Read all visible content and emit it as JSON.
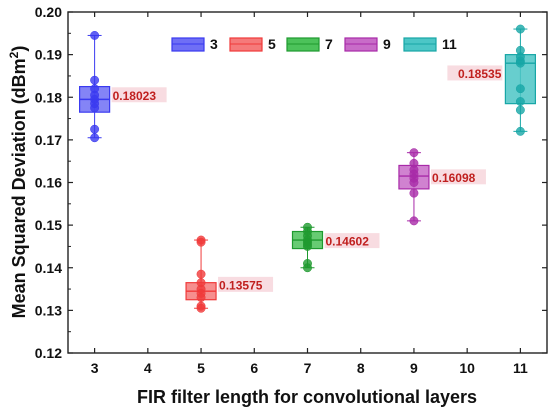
{
  "chart_data": {
    "type": "box",
    "title": "",
    "xlabel": "FIR filter length for convolutional layers",
    "ylabel": "Mean Squared Deviation (dBm",
    "ylabel_sup": "2",
    "ylabel_close": ")",
    "xlim": [
      2.5,
      11.5
    ],
    "ylim": [
      0.12,
      0.2
    ],
    "xticks": [
      3,
      4,
      5,
      6,
      7,
      8,
      9,
      10,
      11
    ],
    "yticks": [
      "0.12",
      "0.13",
      "0.14",
      "0.15",
      "0.16",
      "0.17",
      "0.18",
      "0.19",
      "0.20"
    ],
    "grid": false,
    "legend_position": "top",
    "series": [
      {
        "name": "3",
        "x": 3,
        "color": "#3a3af0",
        "fill": "#6f6ff5",
        "whisker_low": 0.1705,
        "q1": 0.1765,
        "median": 0.1795,
        "q3": 0.1825,
        "whisker_high": 0.1945,
        "mean_label": "0.18023",
        "points": [
          0.1945,
          0.184,
          0.182,
          0.1805,
          0.1795,
          0.1785,
          0.1775,
          0.1725,
          0.1705
        ]
      },
      {
        "name": "5",
        "x": 5,
        "color": "#f03a3a",
        "fill": "#f57a7a",
        "whisker_low": 0.1305,
        "q1": 0.1325,
        "median": 0.1345,
        "q3": 0.1365,
        "whisker_high": 0.1465,
        "mean_label": "0.13575",
        "points": [
          0.1465,
          0.146,
          0.1385,
          0.1365,
          0.135,
          0.134,
          0.133,
          0.131,
          0.1305
        ]
      },
      {
        "name": "7",
        "x": 7,
        "color": "#1f9a2f",
        "fill": "#4cc25a",
        "whisker_low": 0.14,
        "q1": 0.1445,
        "median": 0.1465,
        "q3": 0.1485,
        "whisker_high": 0.1495,
        "mean_label": "0.14602",
        "points": [
          0.1495,
          0.1485,
          0.1475,
          0.1465,
          0.146,
          0.1455,
          0.145,
          0.141,
          0.14
        ]
      },
      {
        "name": "9",
        "x": 9,
        "color": "#a82aa8",
        "fill": "#c86cc8",
        "whisker_low": 0.151,
        "q1": 0.1585,
        "median": 0.1615,
        "q3": 0.164,
        "whisker_high": 0.167,
        "mean_label": "0.16098",
        "points": [
          0.167,
          0.1645,
          0.163,
          0.162,
          0.161,
          0.16,
          0.1575,
          0.151
        ]
      },
      {
        "name": "11",
        "x": 11,
        "color": "#17a6a6",
        "fill": "#4cc6c6",
        "whisker_low": 0.172,
        "q1": 0.1785,
        "median": 0.188,
        "q3": 0.19,
        "whisker_high": 0.196,
        "mean_label": "0.18535",
        "points": [
          0.196,
          0.191,
          0.1895,
          0.1885,
          0.188,
          0.182,
          0.179,
          0.177,
          0.172
        ]
      }
    ]
  }
}
